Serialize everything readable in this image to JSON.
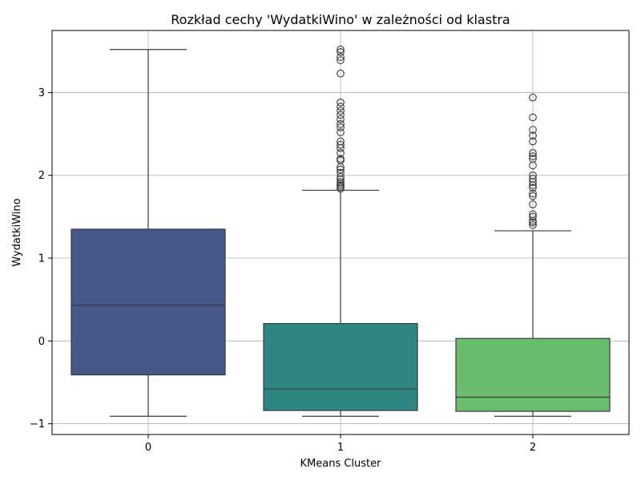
{
  "chart_data": {
    "type": "box",
    "title": "Rozkład cechy 'WydatkiWino' w zależności od klastra",
    "xlabel": "KMeans Cluster",
    "ylabel": "WydatkiWino",
    "categories": [
      "0",
      "1",
      "2"
    ],
    "ylim": [
      -1.13,
      3.75
    ],
    "yticks": [
      -1,
      0,
      1,
      2,
      3
    ],
    "ytick_labels": [
      "−1",
      "0",
      "1",
      "2",
      "3"
    ],
    "grid": true,
    "series": [
      {
        "category": "0",
        "color": "#46578a",
        "min": -0.91,
        "q1": -0.41,
        "median": 0.43,
        "q3": 1.35,
        "max": 3.52,
        "outliers": []
      },
      {
        "category": "1",
        "color": "#2e8683",
        "min": -0.91,
        "q1": -0.84,
        "median": -0.58,
        "q3": 0.21,
        "max": 1.82,
        "outliers": [
          1.84,
          1.86,
          1.88,
          1.9,
          1.92,
          1.95,
          1.98,
          2.03,
          2.07,
          2.1,
          2.18,
          2.2,
          2.27,
          2.33,
          2.37,
          2.41,
          2.52,
          2.58,
          2.62,
          2.68,
          2.73,
          2.78,
          2.83,
          2.88,
          3.23,
          3.39,
          3.43,
          3.49,
          3.52
        ]
      },
      {
        "category": "2",
        "color": "#6abd6c",
        "min": -0.91,
        "q1": -0.85,
        "median": -0.68,
        "q3": 0.03,
        "max": 1.33,
        "outliers": [
          1.4,
          1.43,
          1.45,
          1.5,
          1.53,
          1.65,
          1.75,
          1.78,
          1.85,
          1.88,
          1.92,
          1.96,
          2.0,
          2.12,
          2.2,
          2.23,
          2.27,
          2.41,
          2.48,
          2.55,
          2.7,
          2.94
        ]
      }
    ]
  }
}
